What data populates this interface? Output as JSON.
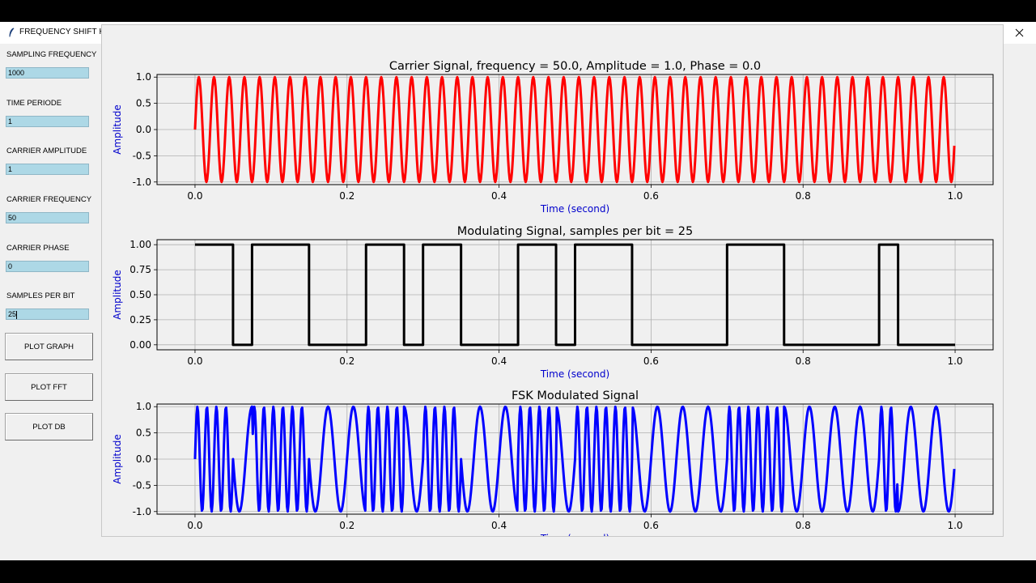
{
  "window": {
    "title": "FREQUENCY SHIFT KEYING (FSK) MODULATION",
    "controls": {
      "minimize": "minimize-icon",
      "maximize": "maximize-icon",
      "close": "close-icon"
    }
  },
  "sidebar": {
    "fields": [
      {
        "label": "SAMPLING FREQUENCY",
        "value": "1000"
      },
      {
        "label": "TIME PERIODE",
        "value": "1"
      },
      {
        "label": "CARRIER AMPLITUDE",
        "value": "1"
      },
      {
        "label": "CARRIER FREQUENCY",
        "value": "50"
      },
      {
        "label": "CARRIER PHASE",
        "value": "0"
      },
      {
        "label": "SAMPLES PER BIT",
        "value": "25"
      }
    ],
    "buttons": [
      {
        "label": "PLOT GRAPH"
      },
      {
        "label": "PLOT FFT"
      },
      {
        "label": "PLOT DB"
      }
    ]
  },
  "colors": {
    "carrier": "#ff0000",
    "modulating": "#000000",
    "fsk": "#0000ff",
    "axis_label": "#0000cc",
    "grid": "#b0b0b0"
  },
  "chart_data": [
    {
      "type": "line",
      "title": "Carrier Signal, frequency = 50.0, Amplitude = 1.0, Phase = 0.0",
      "xlabel": "Time (second)",
      "ylabel": "Amplitude",
      "xlim": [
        -0.05,
        1.05
      ],
      "ylim": [
        -1.05,
        1.05
      ],
      "xticks": [
        "0.0",
        "0.2",
        "0.4",
        "0.6",
        "0.8",
        "1.0"
      ],
      "yticks": [
        "1.0",
        "0.5",
        "0.0",
        "-0.5",
        "-1.0"
      ],
      "grid": true,
      "series": [
        {
          "name": "carrier",
          "frequency": 50.0,
          "amplitude": 1.0,
          "phase": 0.0,
          "x_range": [
            0,
            1
          ],
          "samples": 1000
        }
      ]
    },
    {
      "type": "line",
      "title": "Modulating Signal, samples per bit = 25",
      "xlabel": "Time (second)",
      "ylabel": "Amplitude",
      "xlim": [
        -0.05,
        1.05
      ],
      "ylim": [
        -0.05,
        1.05
      ],
      "xticks": [
        "0.0",
        "0.2",
        "0.4",
        "0.6",
        "0.8",
        "1.0"
      ],
      "yticks": [
        "1.00",
        "0.75",
        "0.50",
        "0.25",
        "0.00"
      ],
      "grid": true,
      "series": [
        {
          "name": "bits",
          "samples_per_bit": 25,
          "bit_duration": 0.025,
          "bits": [
            1,
            1,
            0,
            1,
            1,
            1,
            0,
            0,
            0,
            1,
            1,
            0,
            1,
            1,
            0,
            0,
            0,
            1,
            1,
            0,
            1,
            1,
            1,
            0,
            0,
            0,
            0,
            0,
            1,
            1,
            1,
            0,
            0,
            0,
            0,
            0,
            1,
            0,
            0,
            0
          ]
        }
      ]
    },
    {
      "type": "line",
      "title": "FSK Modulated Signal",
      "xlabel": "Time (second)",
      "ylabel": "Amplitude",
      "xlim": [
        -0.05,
        1.05
      ],
      "ylim": [
        -1.05,
        1.05
      ],
      "xticks": [
        "0.0",
        "0.2",
        "0.4",
        "0.6",
        "0.8",
        "1.0"
      ],
      "yticks": [
        "1.0",
        "0.5",
        "0.0",
        "-0.5",
        "-1.0"
      ],
      "grid": true,
      "series": [
        {
          "name": "fsk",
          "freq_bit1": 80,
          "freq_bit0": 30,
          "amplitude": 1.0,
          "x_range": [
            0,
            1
          ],
          "samples": 1000
        }
      ]
    }
  ]
}
